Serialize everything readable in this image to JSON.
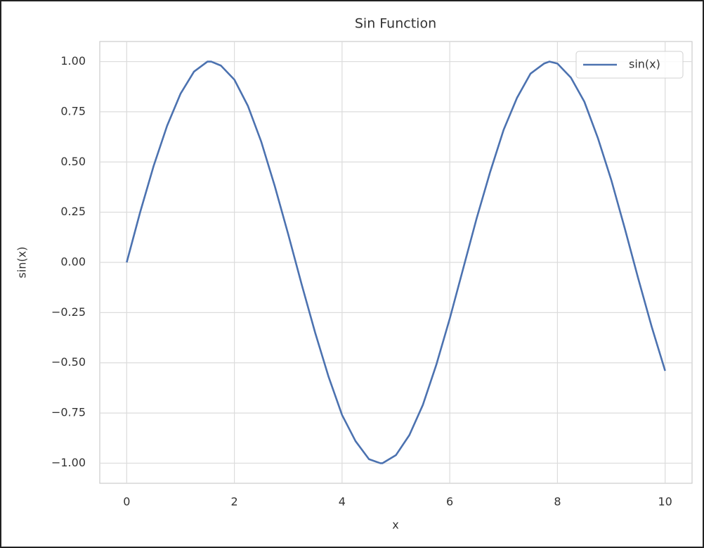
{
  "chart_data": {
    "type": "line",
    "title": "Sin Function",
    "x_label": "x",
    "y_label": "sin(x)",
    "x": [
      0,
      0.25,
      0.5,
      0.75,
      1,
      1.25,
      1.5,
      1.57,
      1.75,
      2,
      2.25,
      2.5,
      2.75,
      3,
      3.25,
      3.5,
      3.75,
      4,
      4.25,
      4.5,
      4.71,
      4.75,
      5,
      5.25,
      5.5,
      5.75,
      6,
      6.25,
      6.5,
      6.75,
      7,
      7.25,
      7.5,
      7.75,
      7.85,
      8,
      8.25,
      8.5,
      8.75,
      9,
      9.25,
      9.5,
      9.75,
      10
    ],
    "series": [
      {
        "name": "sin(x)",
        "color": "#4c72b0",
        "values": [
          0,
          0.25,
          0.48,
          0.68,
          0.84,
          0.95,
          1.0,
          1.0,
          0.98,
          0.91,
          0.78,
          0.6,
          0.38,
          0.14,
          -0.11,
          -0.35,
          -0.57,
          -0.76,
          -0.89,
          -0.98,
          -1.0,
          -1.0,
          -0.96,
          -0.86,
          -0.71,
          -0.51,
          -0.28,
          -0.03,
          0.22,
          0.45,
          0.66,
          0.82,
          0.94,
          0.99,
          1.0,
          0.99,
          0.92,
          0.8,
          0.62,
          0.41,
          0.17,
          -0.08,
          -0.32,
          -0.54
        ]
      }
    ],
    "xlim": [
      -0.5,
      10.5
    ],
    "xticks": [
      0,
      2,
      4,
      6,
      8,
      10
    ],
    "ylim": [
      -1.1,
      1.1
    ],
    "yticks": [
      {
        "value": -1,
        "label": "−1.00"
      },
      {
        "value": -0.75,
        "label": "−0.75"
      },
      {
        "value": -0.5,
        "label": "−0.50"
      },
      {
        "value": -0.25,
        "label": "−0.25"
      },
      {
        "value": 0,
        "label": "0.00"
      },
      {
        "value": 0.25,
        "label": "0.25"
      },
      {
        "value": 0.5,
        "label": "0.50"
      },
      {
        "value": 0.75,
        "label": "0.75"
      },
      {
        "value": 1,
        "label": "1.00"
      }
    ],
    "grid": true,
    "legend": "upper right"
  }
}
